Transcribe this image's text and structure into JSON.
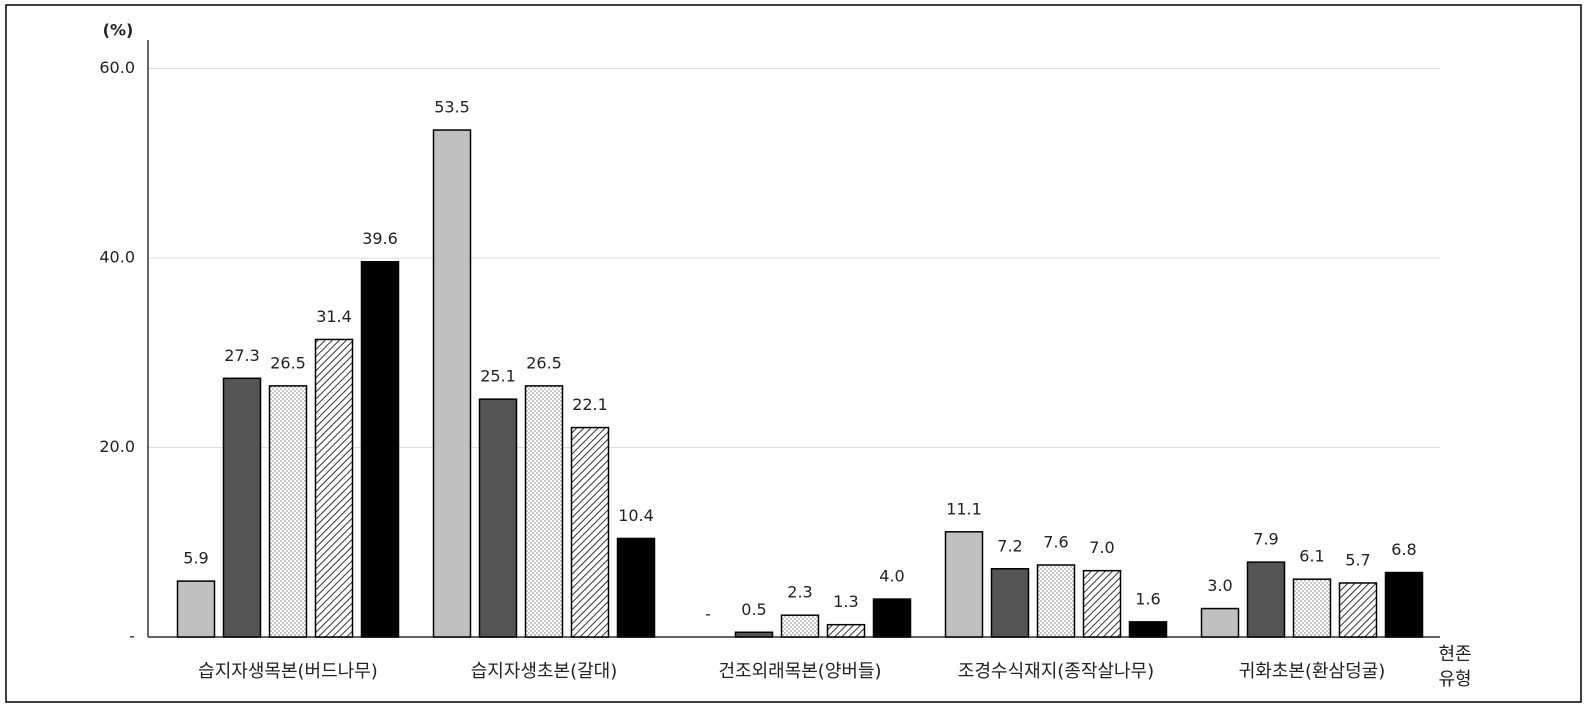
{
  "chart_data": {
    "type": "bar",
    "y_label": "(%)",
    "x_label": [
      "현존",
      "유형"
    ],
    "categories": [
      "습지자생목본(버드나무)",
      "습지자생초본(갈대)",
      "건조외래목본(양버들)",
      "조경수식재지(종작살나무)",
      "귀화초본(환삼덩굴)"
    ],
    "series": [
      {
        "color": "#c0c0c0",
        "values": [
          5.9,
          53.5,
          0,
          11.1,
          3.0
        ],
        "value_labels": [
          "5.9",
          "53.5",
          "-",
          "11.1",
          "3.0"
        ]
      },
      {
        "color": "#555555",
        "values": [
          27.3,
          25.1,
          0.5,
          7.2,
          7.9
        ],
        "value_labels": [
          "27.3",
          "25.1",
          "0.5",
          "7.2",
          "7.9"
        ]
      },
      {
        "color": "#ffffff",
        "pattern": "dots",
        "values": [
          26.5,
          26.5,
          2.3,
          7.6,
          6.1
        ],
        "value_labels": [
          "26.5",
          "26.5",
          "2.3",
          "7.6",
          "6.1"
        ]
      },
      {
        "color": "#ffffff",
        "pattern": "hatch",
        "values": [
          31.4,
          22.1,
          1.3,
          7.0,
          5.7
        ],
        "value_labels": [
          "31.4",
          "22.1",
          "1.3",
          "7.0",
          "5.7"
        ]
      },
      {
        "color": "#000000",
        "values": [
          39.6,
          10.4,
          4.0,
          1.6,
          6.8
        ],
        "value_labels": [
          "39.6",
          "10.4",
          "4.0",
          "1.6",
          "6.8"
        ]
      }
    ],
    "ylim": [
      0,
      63
    ],
    "yticks": [
      {
        "value": 0,
        "label": "-"
      },
      {
        "value": 20,
        "label": "20.0"
      },
      {
        "value": 40,
        "label": "40.0"
      },
      {
        "value": 60,
        "label": "60.0"
      }
    ],
    "grid": true
  }
}
